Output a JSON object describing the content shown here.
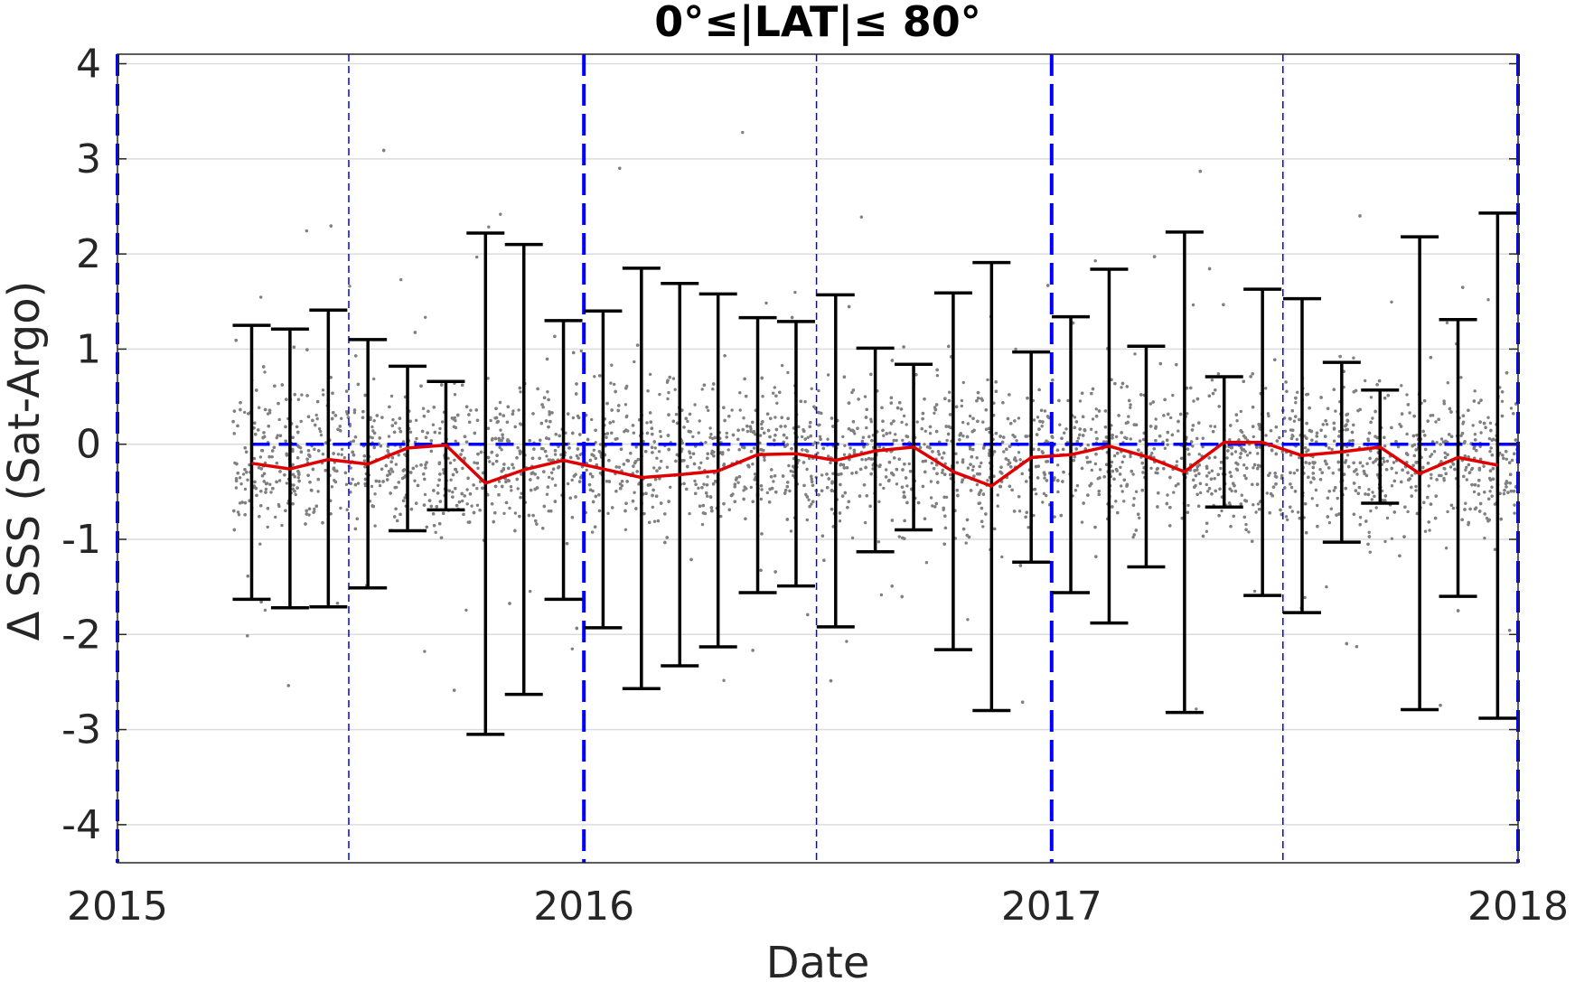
{
  "chart_data": {
    "type": "line",
    "title": "0°≤|LAT|≤ 80°",
    "xlabel": "Date",
    "ylabel": "Δ SSS (Sat-Argo)",
    "xlim": [
      "2015-01-01",
      "2018-01-01"
    ],
    "ylim": [
      -4.4,
      4.1
    ],
    "x_ticks": [
      "2015",
      "2016",
      "2017",
      "2018"
    ],
    "y_ticks": [
      "4",
      "3",
      "2",
      "1",
      "0",
      "-1",
      "-2",
      "-3",
      "-4"
    ],
    "grid": true,
    "reference_line_y": 0,
    "year_boundaries": [
      "2015-01-01",
      "2016-01-01",
      "2017-01-01",
      "2018-01-01"
    ],
    "half_year_lines": [
      "2015-07-01",
      "2016-07-01",
      "2017-07-01"
    ],
    "colors": {
      "mean_line": "#e00000",
      "error_bars": "#000000",
      "reference_lines": "#0000ff",
      "scatter_points": "#808080",
      "grid": "#dcdcdc",
      "axes": "#262626"
    },
    "scatter_description": "dense grey scatter of individual Sat-Argo differences, roughly 2015-04 to 2018-01",
    "series": [
      {
        "values": [
          {
            "x": "2015-04-16",
            "mean": -0.2,
            "upper": 1.25,
            "lower": -1.63
          },
          {
            "x": "2015-05-16",
            "mean": -0.26,
            "upper": 1.21,
            "lower": -1.72
          },
          {
            "x": "2015-06-15",
            "mean": -0.16,
            "upper": 1.41,
            "lower": -1.71
          },
          {
            "x": "2015-07-16",
            "mean": -0.21,
            "upper": 1.1,
            "lower": -1.51
          },
          {
            "x": "2015-08-16",
            "mean": -0.04,
            "upper": 0.82,
            "lower": -0.91
          },
          {
            "x": "2015-09-15",
            "mean": -0.01,
            "upper": 0.66,
            "lower": -0.69
          },
          {
            "x": "2015-10-16",
            "mean": -0.41,
            "upper": 2.22,
            "lower": -3.05
          },
          {
            "x": "2015-11-15",
            "mean": -0.27,
            "upper": 2.1,
            "lower": -2.63
          },
          {
            "x": "2015-12-16",
            "mean": -0.17,
            "upper": 1.3,
            "lower": -1.63
          },
          {
            "x": "2016-01-16",
            "mean": -0.26,
            "upper": 1.4,
            "lower": -1.93
          },
          {
            "x": "2016-02-15",
            "mean": -0.35,
            "upper": 1.85,
            "lower": -2.57
          },
          {
            "x": "2016-03-16",
            "mean": -0.32,
            "upper": 1.69,
            "lower": -2.33
          },
          {
            "x": "2016-04-15",
            "mean": -0.28,
            "upper": 1.58,
            "lower": -2.13
          },
          {
            "x": "2016-05-16",
            "mean": -0.11,
            "upper": 1.33,
            "lower": -1.56
          },
          {
            "x": "2016-06-15",
            "mean": -0.1,
            "upper": 1.29,
            "lower": -1.49
          },
          {
            "x": "2016-07-16",
            "mean": -0.17,
            "upper": 1.57,
            "lower": -1.92
          },
          {
            "x": "2016-08-16",
            "mean": -0.07,
            "upper": 1.01,
            "lower": -1.13
          },
          {
            "x": "2016-09-15",
            "mean": -0.03,
            "upper": 0.84,
            "lower": -0.9
          },
          {
            "x": "2016-10-16",
            "mean": -0.29,
            "upper": 1.59,
            "lower": -2.16
          },
          {
            "x": "2016-11-15",
            "mean": -0.44,
            "upper": 1.91,
            "lower": -2.8
          },
          {
            "x": "2016-12-16",
            "mean": -0.14,
            "upper": 0.97,
            "lower": -1.24
          },
          {
            "x": "2017-01-16",
            "mean": -0.11,
            "upper": 1.34,
            "lower": -1.56
          },
          {
            "x": "2017-02-15",
            "mean": -0.02,
            "upper": 1.84,
            "lower": -1.88
          },
          {
            "x": "2017-03-16",
            "mean": -0.13,
            "upper": 1.03,
            "lower": -1.29
          },
          {
            "x": "2017-04-15",
            "mean": -0.29,
            "upper": 2.23,
            "lower": -2.82
          },
          {
            "x": "2017-05-16",
            "mean": 0.02,
            "upper": 0.71,
            "lower": -0.66
          },
          {
            "x": "2017-06-15",
            "mean": 0.02,
            "upper": 1.63,
            "lower": -1.59
          },
          {
            "x": "2017-07-16",
            "mean": -0.12,
            "upper": 1.53,
            "lower": -1.77
          },
          {
            "x": "2017-08-16",
            "mean": -0.08,
            "upper": 0.86,
            "lower": -1.03
          },
          {
            "x": "2017-09-15",
            "mean": -0.03,
            "upper": 0.57,
            "lower": -0.62
          },
          {
            "x": "2017-10-16",
            "mean": -0.31,
            "upper": 2.18,
            "lower": -2.79
          },
          {
            "x": "2017-11-15",
            "mean": -0.14,
            "upper": 1.31,
            "lower": -1.6
          },
          {
            "x": "2017-12-16",
            "mean": -0.22,
            "upper": 2.43,
            "lower": -2.88
          }
        ]
      }
    ]
  }
}
